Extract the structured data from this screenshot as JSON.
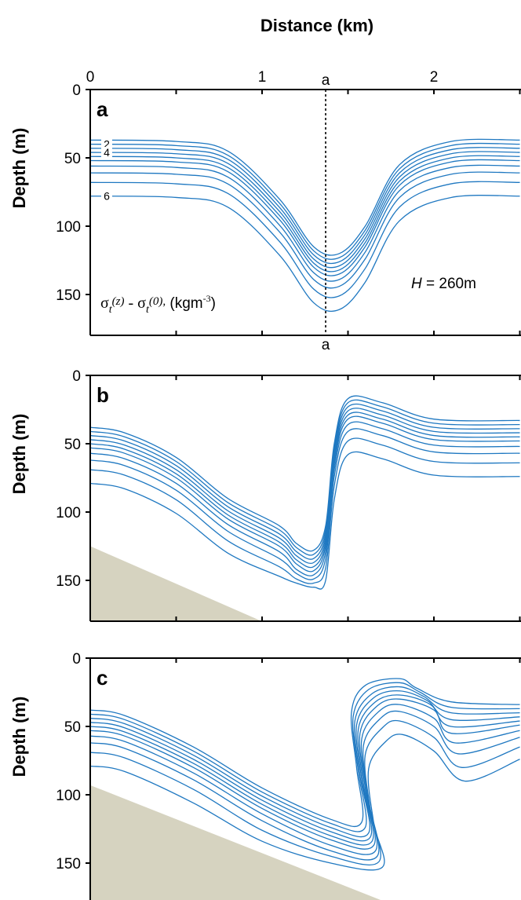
{
  "figure": {
    "x_axis_title": "Distance (km)",
    "y_axis_title": "Depth (m)",
    "section_marker": "a",
    "annotation_density": "σt(z) - σt(0), (kgm-3)",
    "annotation_density_parts": {
      "sigma1": "σ",
      "sub1": "t",
      "z": "(z)",
      "minus": " - ",
      "sigma2": "σ",
      "sub2": "t",
      "zero": "(0),",
      "units_pre": " (kgm",
      "units_exp": "-3",
      "units_post": ")"
    },
    "annotation_H": {
      "var": "H",
      "rest": " = 260m"
    },
    "contour_labels": [
      "2",
      "4",
      "6"
    ]
  },
  "colors": {
    "contour": "#1f78c1",
    "bathymetry": "#d6d3c0",
    "axis": "#000000"
  },
  "chart_data": [
    {
      "type": "line",
      "panel": "a",
      "xlim": [
        0,
        2.5
      ],
      "ylim": [
        180,
        0
      ],
      "xticks": [
        0,
        1,
        2
      ],
      "yticks": [
        0,
        50,
        100,
        150
      ],
      "xlabel": "Distance (km)",
      "ylabel": "Depth (m)",
      "x_axis_top": true,
      "section_line_x": 1.37,
      "bathymetry": [],
      "series": [
        {
          "x": [
            0,
            0.5,
            0.8,
            1.1,
            1.3,
            1.45,
            1.6,
            1.8,
            2.1,
            2.5
          ],
          "values": [
            37,
            38,
            45,
            80,
            115,
            120,
            100,
            55,
            38,
            37
          ]
        },
        {
          "x": [
            0,
            0.5,
            0.8,
            1.1,
            1.3,
            1.45,
            1.6,
            1.8,
            2.1,
            2.5
          ],
          "values": [
            40,
            41,
            48,
            83,
            118,
            123,
            103,
            58,
            41,
            40
          ]
        },
        {
          "x": [
            0,
            0.5,
            0.8,
            1.1,
            1.3,
            1.45,
            1.6,
            1.8,
            2.1,
            2.5
          ],
          "values": [
            43,
            44,
            51,
            86,
            121,
            126,
            106,
            61,
            44,
            43
          ]
        },
        {
          "x": [
            0,
            0.5,
            0.8,
            1.1,
            1.3,
            1.45,
            1.6,
            1.8,
            2.1,
            2.5
          ],
          "values": [
            46,
            47,
            54,
            89,
            124,
            129,
            109,
            64,
            47,
            46
          ]
        },
        {
          "x": [
            0,
            0.5,
            0.8,
            1.1,
            1.3,
            1.45,
            1.6,
            1.8,
            2.1,
            2.5
          ],
          "values": [
            49,
            50,
            57,
            92,
            127,
            132,
            112,
            67,
            50,
            49
          ]
        },
        {
          "x": [
            0,
            0.5,
            0.8,
            1.1,
            1.3,
            1.45,
            1.6,
            1.8,
            2.1,
            2.5
          ],
          "values": [
            52,
            53,
            60,
            95,
            130,
            135,
            115,
            70,
            53,
            52
          ]
        },
        {
          "x": [
            0,
            0.5,
            0.8,
            1.1,
            1.3,
            1.45,
            1.6,
            1.8,
            2.1,
            2.5
          ],
          "values": [
            56,
            57,
            64,
            99,
            134,
            139,
            119,
            74,
            57,
            56
          ]
        },
        {
          "x": [
            0,
            0.5,
            0.8,
            1.1,
            1.3,
            1.45,
            1.6,
            1.8,
            2.1,
            2.5
          ],
          "values": [
            61,
            62,
            69,
            104,
            139,
            144,
            124,
            79,
            62,
            61
          ]
        },
        {
          "x": [
            0,
            0.5,
            0.8,
            1.1,
            1.3,
            1.45,
            1.6,
            1.8,
            2.1,
            2.5
          ],
          "values": [
            68,
            69,
            76,
            111,
            146,
            151,
            131,
            86,
            69,
            68
          ]
        },
        {
          "x": [
            0,
            0.5,
            0.8,
            1.1,
            1.3,
            1.45,
            1.6,
            1.8,
            2.1,
            2.5
          ],
          "values": [
            78,
            79,
            86,
            121,
            156,
            161,
            141,
            96,
            79,
            78
          ]
        }
      ]
    },
    {
      "type": "line",
      "panel": "b",
      "xlim": [
        0,
        2.5
      ],
      "ylim": [
        180,
        0
      ],
      "xticks": [
        0,
        1,
        2
      ],
      "yticks": [
        0,
        50,
        100,
        150
      ],
      "xlabel": "",
      "ylabel": "Depth (m)",
      "x_axis_top": false,
      "bathymetry": [
        [
          0,
          125
        ],
        [
          1.0,
          180
        ]
      ],
      "series": [
        {
          "x": [
            0,
            0.2,
            0.5,
            0.8,
            1.1,
            1.2,
            1.3,
            1.37,
            1.42,
            1.5,
            1.7,
            2.0,
            2.5
          ],
          "values": [
            38,
            42,
            60,
            90,
            110,
            123,
            128,
            110,
            50,
            17,
            20,
            32,
            33
          ]
        },
        {
          "x": [
            0,
            0.2,
            0.5,
            0.8,
            1.1,
            1.2,
            1.3,
            1.37,
            1.42,
            1.5,
            1.7,
            2.0,
            2.5
          ],
          "values": [
            41,
            45,
            63,
            93,
            113,
            126,
            131,
            113,
            53,
            20,
            23,
            35,
            36
          ]
        },
        {
          "x": [
            0,
            0.2,
            0.5,
            0.8,
            1.1,
            1.2,
            1.3,
            1.37,
            1.42,
            1.5,
            1.7,
            2.0,
            2.5
          ],
          "values": [
            44,
            48,
            66,
            96,
            116,
            129,
            134,
            116,
            56,
            23,
            26,
            38,
            39
          ]
        },
        {
          "x": [
            0,
            0.2,
            0.5,
            0.8,
            1.1,
            1.2,
            1.3,
            1.37,
            1.42,
            1.5,
            1.7,
            2.0,
            2.5
          ],
          "values": [
            47,
            51,
            69,
            99,
            119,
            132,
            137,
            119,
            59,
            26,
            29,
            41,
            42
          ]
        },
        {
          "x": [
            0,
            0.2,
            0.5,
            0.8,
            1.1,
            1.2,
            1.3,
            1.37,
            1.42,
            1.5,
            1.7,
            2.0,
            2.5
          ],
          "values": [
            50,
            54,
            72,
            102,
            122,
            135,
            140,
            122,
            62,
            29,
            32,
            44,
            45
          ]
        },
        {
          "x": [
            0,
            0.2,
            0.5,
            0.8,
            1.1,
            1.2,
            1.3,
            1.37,
            1.42,
            1.5,
            1.7,
            2.0,
            2.5
          ],
          "values": [
            53,
            57,
            75,
            105,
            125,
            138,
            143,
            125,
            65,
            32,
            35,
            47,
            48
          ]
        },
        {
          "x": [
            0,
            0.2,
            0.5,
            0.8,
            1.1,
            1.2,
            1.3,
            1.37,
            1.42,
            1.5,
            1.7,
            2.0,
            2.5
          ],
          "values": [
            57,
            61,
            79,
            109,
            129,
            142,
            146,
            129,
            69,
            36,
            39,
            51,
            52
          ]
        },
        {
          "x": [
            0,
            0.2,
            0.5,
            0.8,
            1.1,
            1.2,
            1.3,
            1.37,
            1.42,
            1.5,
            1.7,
            2.0,
            2.5
          ],
          "values": [
            62,
            66,
            84,
            114,
            134,
            145,
            149,
            134,
            74,
            41,
            44,
            56,
            57
          ]
        },
        {
          "x": [
            0,
            0.2,
            0.5,
            0.8,
            1.1,
            1.2,
            1.3,
            1.37,
            1.42,
            1.5,
            1.7,
            2.0,
            2.5
          ],
          "values": [
            69,
            73,
            91,
            121,
            140,
            149,
            152,
            141,
            81,
            48,
            51,
            63,
            64
          ]
        },
        {
          "x": [
            0,
            0.2,
            0.5,
            0.8,
            1.1,
            1.2,
            1.3,
            1.37,
            1.42,
            1.5,
            1.7,
            2.0,
            2.5
          ],
          "values": [
            79,
            83,
            101,
            130,
            147,
            152,
            155,
            150,
            91,
            58,
            61,
            73,
            74
          ]
        }
      ]
    },
    {
      "type": "line",
      "panel": "c",
      "xlim": [
        0,
        2.5
      ],
      "ylim": [
        180,
        0
      ],
      "xticks": [
        0,
        1,
        2
      ],
      "yticks": [
        0,
        50,
        100,
        150
      ],
      "xlabel": "",
      "ylabel": "Depth (m)",
      "x_axis_top": false,
      "bathymetry": [
        [
          0,
          93
        ],
        [
          1.75,
          180
        ]
      ],
      "series": [
        {
          "x": [
            0,
            0.2,
            0.6,
            1.0,
            1.4,
            1.58,
            1.55,
            1.52,
            1.6,
            1.8,
            1.9,
            2.1,
            2.5
          ],
          "values": [
            38,
            42,
            65,
            95,
            118,
            120,
            80,
            40,
            20,
            15,
            22,
            32,
            34
          ]
        },
        {
          "x": [
            0,
            0.2,
            0.6,
            1.0,
            1.4,
            1.6,
            1.56,
            1.53,
            1.62,
            1.8,
            1.92,
            2.1,
            2.5
          ],
          "values": [
            41,
            45,
            68,
            98,
            121,
            124,
            83,
            43,
            23,
            18,
            25,
            36,
            37
          ]
        },
        {
          "x": [
            0,
            0.2,
            0.6,
            1.0,
            1.4,
            1.62,
            1.57,
            1.54,
            1.64,
            1.8,
            1.94,
            2.1,
            2.5
          ],
          "values": [
            44,
            48,
            71,
            101,
            124,
            128,
            86,
            46,
            26,
            21,
            28,
            40,
            40
          ]
        },
        {
          "x": [
            0,
            0.2,
            0.6,
            1.0,
            1.4,
            1.63,
            1.58,
            1.55,
            1.65,
            1.8,
            1.96,
            2.1,
            2.5
          ],
          "values": [
            47,
            51,
            74,
            104,
            127,
            131,
            89,
            49,
            29,
            24,
            31,
            45,
            43
          ]
        },
        {
          "x": [
            0,
            0.2,
            0.6,
            1.0,
            1.4,
            1.64,
            1.59,
            1.56,
            1.66,
            1.8,
            1.98,
            2.1,
            2.5
          ],
          "values": [
            50,
            54,
            77,
            107,
            130,
            134,
            92,
            52,
            32,
            27,
            34,
            50,
            46
          ]
        },
        {
          "x": [
            0,
            0.2,
            0.6,
            1.0,
            1.4,
            1.65,
            1.6,
            1.57,
            1.67,
            1.8,
            2.0,
            2.1,
            2.5
          ],
          "values": [
            53,
            57,
            80,
            110,
            133,
            137,
            95,
            55,
            35,
            30,
            38,
            55,
            49
          ]
        },
        {
          "x": [
            0,
            0.2,
            0.6,
            1.0,
            1.4,
            1.66,
            1.61,
            1.58,
            1.68,
            1.8,
            2.0,
            2.12,
            2.5
          ],
          "values": [
            57,
            61,
            84,
            114,
            137,
            141,
            99,
            59,
            39,
            34,
            44,
            62,
            53
          ]
        },
        {
          "x": [
            0,
            0.2,
            0.6,
            1.0,
            1.4,
            1.67,
            1.62,
            1.59,
            1.69,
            1.8,
            2.0,
            2.14,
            2.5
          ],
          "values": [
            62,
            66,
            89,
            119,
            141,
            145,
            104,
            64,
            44,
            39,
            50,
            70,
            58
          ]
        },
        {
          "x": [
            0,
            0.2,
            0.6,
            1.0,
            1.4,
            1.68,
            1.63,
            1.6,
            1.7,
            1.8,
            2.0,
            2.16,
            2.5
          ],
          "values": [
            69,
            73,
            96,
            126,
            145,
            149,
            111,
            71,
            51,
            46,
            58,
            80,
            65
          ]
        },
        {
          "x": [
            0,
            0.2,
            0.6,
            1.0,
            1.4,
            1.7,
            1.65,
            1.62,
            1.72,
            1.82,
            2.0,
            2.18,
            2.5
          ],
          "values": [
            79,
            83,
            106,
            134,
            150,
            153,
            121,
            81,
            61,
            56,
            68,
            90,
            74
          ]
        }
      ]
    }
  ]
}
